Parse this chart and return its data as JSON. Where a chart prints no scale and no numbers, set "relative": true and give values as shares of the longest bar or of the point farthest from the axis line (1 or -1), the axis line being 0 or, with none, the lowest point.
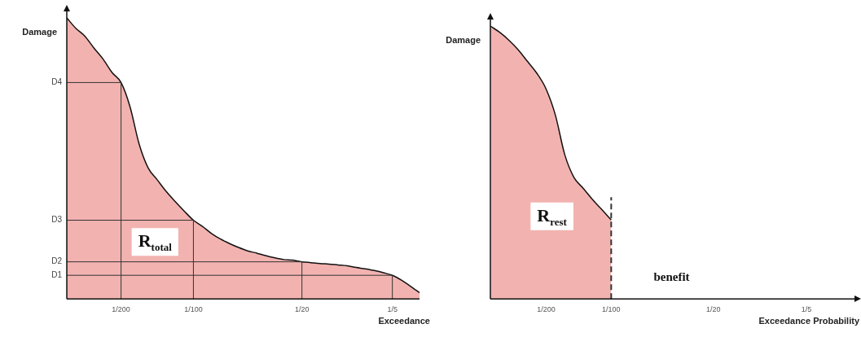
{
  "chart_data": [
    {
      "type": "area",
      "relative": true,
      "xlabel": "Exceedance",
      "ylabel": "Damage",
      "categories": [
        null,
        null,
        null,
        null,
        null,
        null,
        "1/200",
        null,
        null,
        null,
        null,
        null,
        null,
        null,
        "1/100",
        null,
        null,
        null,
        null,
        null,
        null,
        null,
        null,
        null,
        null,
        null,
        "1/20",
        null,
        null,
        null,
        null,
        null,
        null,
        null,
        null,
        null,
        "1/5",
        null,
        null,
        null
      ],
      "series": [
        {
          "color": "#f2b3b0",
          "values": [
            1,
            0.963,
            0.935,
            0.893,
            0.854,
            0.806,
            0.77,
            0.683,
            0.551,
            0.466,
            0.424,
            0.382,
            0.346,
            0.312,
            0.28,
            0.258,
            0.233,
            0.213,
            0.197,
            0.183,
            0.171,
            0.163,
            0.154,
            0.146,
            0.14,
            0.138,
            0.132,
            0.129,
            0.126,
            0.124,
            0.121,
            0.118,
            0.112,
            0.107,
            0.101,
            0.093,
            0.084,
            0.067,
            0.045,
            0.022
          ]
        }
      ],
      "ref_lines": [
        {
          "axis": "y",
          "value": 0.084,
          "label": "D1"
        },
        {
          "axis": "y",
          "value": 0.132,
          "label": "D2"
        },
        {
          "axis": "y",
          "value": 0.28,
          "label": "D3"
        },
        {
          "axis": "y",
          "value": 0.77,
          "label": "D4"
        },
        {
          "axis": "x",
          "value": "1/200"
        },
        {
          "axis": "x",
          "value": "1/100"
        },
        {
          "axis": "x",
          "value": "1/20"
        },
        {
          "axis": "x",
          "value": "1/5"
        }
      ],
      "annotations": [
        "R$_{total}$"
      ]
    },
    {
      "type": "area",
      "relative": true,
      "xlabel": "Exceedance Probability",
      "ylabel": "Damage",
      "categories": [
        null,
        null,
        null,
        null,
        null,
        null,
        "1/200",
        null,
        null,
        null,
        null,
        null,
        null,
        "1/100",
        null,
        null,
        null,
        null,
        null,
        null,
        null,
        null,
        null,
        null,
        "1/20",
        null,
        null,
        null,
        null,
        null,
        null,
        null,
        null,
        null,
        "1/5",
        null,
        null,
        null,
        null,
        null
      ],
      "series": [
        {
          "color": "#f2b3b0",
          "values": [
            1,
            0.977,
            0.948,
            0.913,
            0.87,
            0.827,
            0.769,
            0.673,
            0.529,
            0.445,
            0.405,
            0.364,
            0.327,
            0.289,
            null,
            null,
            null,
            null,
            null,
            null,
            null,
            null,
            null,
            null,
            null,
            null,
            null,
            null,
            null,
            null,
            null,
            null,
            null,
            null,
            null,
            null,
            null,
            null,
            null,
            null
          ]
        }
      ],
      "ref_lines": [
        {
          "axis": "x",
          "value": "1/100",
          "line_style": "dashed"
        }
      ],
      "annotations": [
        "R$_{rest}$",
        "benefit"
      ]
    }
  ]
}
